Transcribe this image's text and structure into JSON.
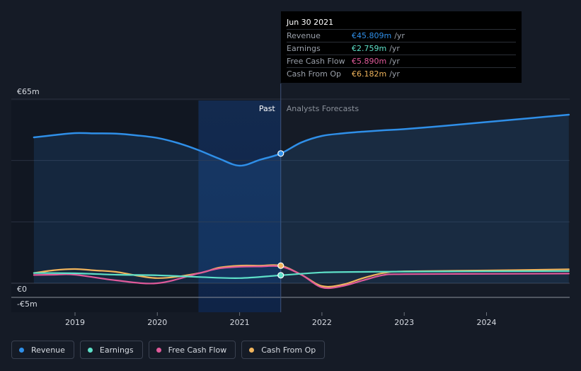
{
  "tooltip": {
    "date": "Jun 30 2021",
    "rows": [
      {
        "label": "Revenue",
        "value": "€45.809m",
        "unit": "/yr",
        "color": "#2f8fe8"
      },
      {
        "label": "Earnings",
        "value": "€2.759m",
        "unit": "/yr",
        "color": "#5ee0c8"
      },
      {
        "label": "Free Cash Flow",
        "value": "€5.890m",
        "unit": "/yr",
        "color": "#e05a9a"
      },
      {
        "label": "Cash From Op",
        "value": "€6.182m",
        "unit": "/yr",
        "color": "#f0b45c"
      }
    ]
  },
  "legend": [
    {
      "label": "Revenue",
      "color": "#2f8fe8"
    },
    {
      "label": "Earnings",
      "color": "#5ee0c8"
    },
    {
      "label": "Free Cash Flow",
      "color": "#e05a9a"
    },
    {
      "label": "Cash From Op",
      "color": "#f0b45c"
    }
  ],
  "chart_data": {
    "type": "line",
    "title": "",
    "xlabel": "",
    "ylabel": "",
    "x_ticks": [
      "2019",
      "2020",
      "2021",
      "2022",
      "2023",
      "2024"
    ],
    "x_tick_values": [
      2019,
      2020,
      2021,
      2022,
      2023,
      2024
    ],
    "y_ticks": [
      "€65m",
      "€0",
      "-€5m"
    ],
    "y_tick_values": [
      65,
      0,
      -5
    ],
    "xlim": [
      2018.5,
      2025.0
    ],
    "ylim": [
      -5,
      65
    ],
    "past_label": "Past",
    "forecast_label": "Analysts Forecasts",
    "divider_x": 2021.5,
    "highlight_start": 2020.5,
    "series": [
      {
        "name": "Revenue",
        "color": "#2f8fe8",
        "fill": true,
        "x": [
          2018.5,
          2018.75,
          2019.0,
          2019.25,
          2019.5,
          2019.75,
          2020.0,
          2020.25,
          2020.5,
          2020.75,
          2021.0,
          2021.25,
          2021.5,
          2021.75,
          2022.0,
          2022.25,
          2022.5,
          2022.75,
          2023.0,
          2023.5,
          2024.0,
          2024.5,
          2025.0
        ],
        "y": [
          51.5,
          52.3,
          53.0,
          52.9,
          52.8,
          52.2,
          51.3,
          49.5,
          47.0,
          44.0,
          41.5,
          43.6,
          45.8,
          49.7,
          52.0,
          52.9,
          53.5,
          54.0,
          54.4,
          55.6,
          56.9,
          58.2,
          59.5
        ]
      },
      {
        "name": "Earnings",
        "color": "#5ee0c8",
        "fill": false,
        "x": [
          2018.5,
          2019.0,
          2019.5,
          2020.0,
          2020.5,
          2021.0,
          2021.5,
          2022.0,
          2022.5,
          2023.0,
          2024.0,
          2025.0
        ],
        "y": [
          3.6,
          3.5,
          3.0,
          2.8,
          2.2,
          1.8,
          2.8,
          3.8,
          4.0,
          4.1,
          4.2,
          4.3
        ]
      },
      {
        "name": "Free Cash Flow",
        "color": "#e05a9a",
        "fill": false,
        "x": [
          2018.5,
          2018.75,
          2019.0,
          2019.5,
          2020.0,
          2020.5,
          2020.75,
          2021.0,
          2021.25,
          2021.5,
          2021.75,
          2022.0,
          2022.25,
          2022.5,
          2022.75,
          2023.0,
          2024.0,
          2025.0
        ],
        "y": [
          2.9,
          3.0,
          3.0,
          1.0,
          0.0,
          3.5,
          5.2,
          5.8,
          5.9,
          5.9,
          3.0,
          -1.5,
          -1.0,
          1.0,
          2.9,
          3.2,
          3.3,
          3.4
        ]
      },
      {
        "name": "Cash From Op",
        "color": "#f0b45c",
        "fill": false,
        "x": [
          2018.5,
          2018.75,
          2019.0,
          2019.25,
          2019.5,
          2020.0,
          2020.5,
          2020.75,
          2021.0,
          2021.25,
          2021.5,
          2021.75,
          2022.0,
          2022.25,
          2022.5,
          2022.75,
          2023.0,
          2024.0,
          2025.0
        ],
        "y": [
          3.6,
          4.6,
          5.0,
          4.5,
          4.0,
          1.8,
          3.5,
          5.5,
          6.2,
          6.2,
          6.2,
          3.0,
          -1.0,
          -0.5,
          1.8,
          3.6,
          4.2,
          4.5,
          4.9
        ]
      }
    ],
    "hover_points": [
      {
        "series": "Revenue",
        "x": 2021.5,
        "y": 45.8
      },
      {
        "series": "Cash From Op",
        "x": 2021.5,
        "y": 6.2
      },
      {
        "series": "Earnings",
        "x": 2021.5,
        "y": 2.8
      }
    ]
  }
}
